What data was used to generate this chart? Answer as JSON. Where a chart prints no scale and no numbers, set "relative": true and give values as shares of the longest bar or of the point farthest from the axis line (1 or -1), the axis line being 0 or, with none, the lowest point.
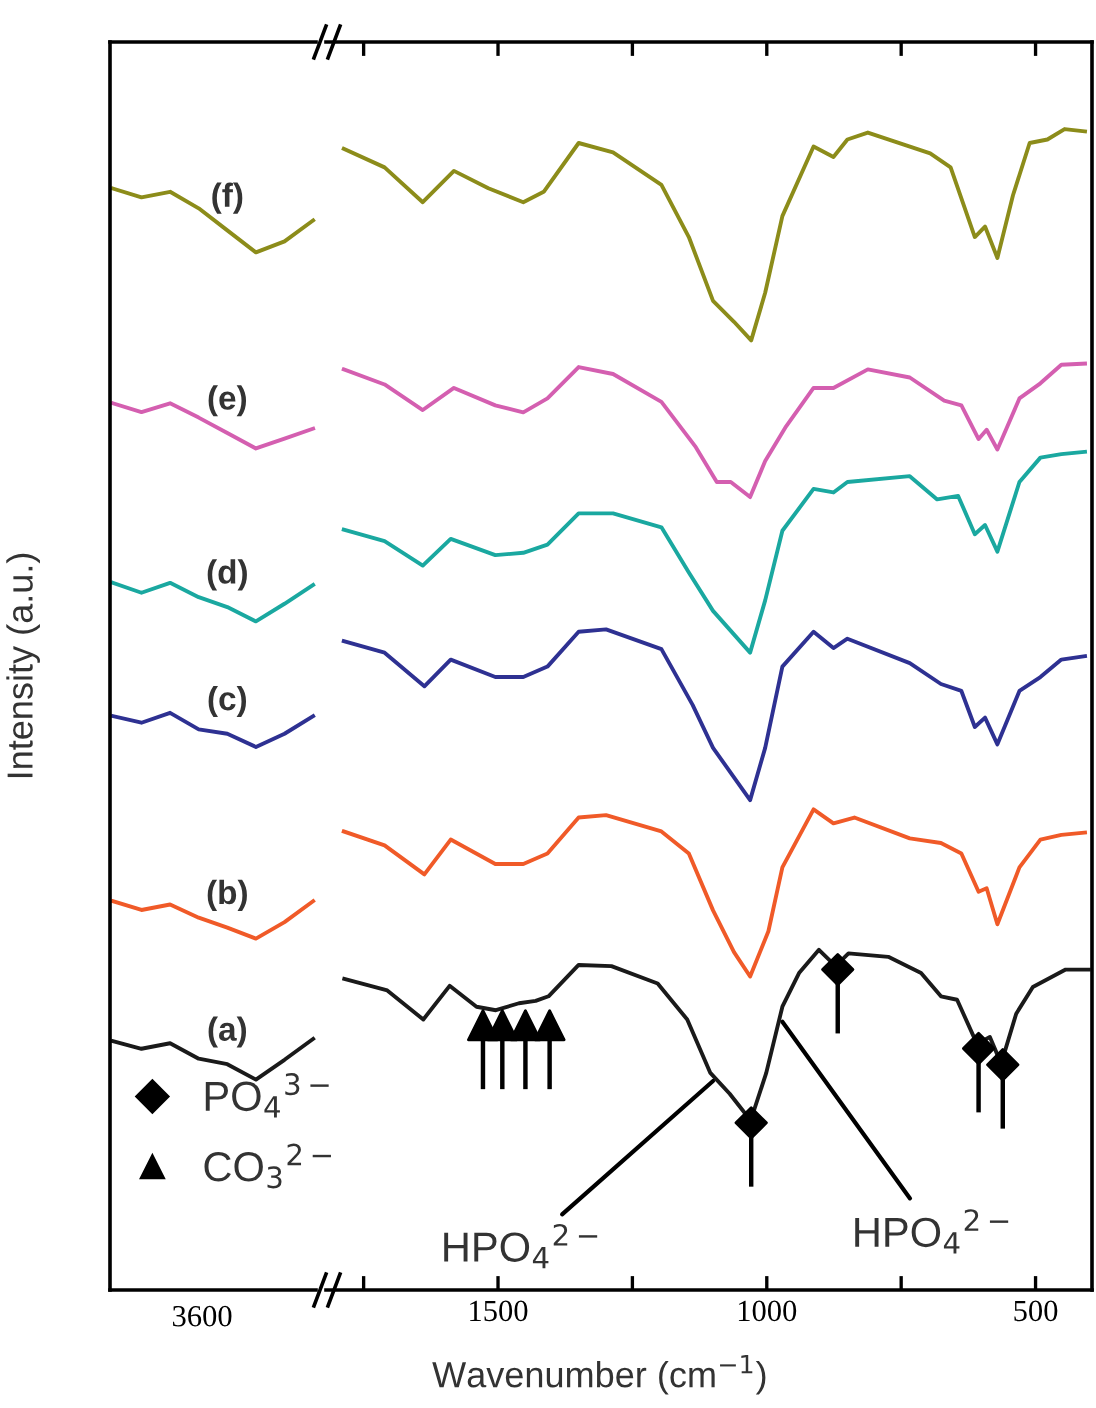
{
  "chart_data": [
    {
      "type": "line",
      "ylabel": "Intensity (a.u.)",
      "relative": true,
      "tick_labels": "x",
      "grid": false,
      "legend": false,
      "categories": [
        null,
        null,
        null,
        null,
        null,
        null,
        null,
        null
      ],
      "annotations": [
        "3600"
      ],
      "series": [
        {
          "name": "(a)",
          "color": "#1a1a1a",
          "values": [
            0.226,
            0.219,
            0.224,
            0.21,
            0.205,
            0.191,
            0.209,
            0.228
          ]
        },
        {
          "name": "(b)",
          "color": "#f05a28",
          "values": [
            0.353,
            0.345,
            0.35,
            0.338,
            0.329,
            0.319,
            0.334,
            0.353
          ]
        },
        {
          "name": "(c)",
          "color": "#2e3192",
          "values": [
            0.521,
            0.515,
            0.524,
            0.509,
            0.505,
            0.493,
            0.505,
            0.521
          ]
        },
        {
          "name": "(d)",
          "color": "#1aa8a0",
          "values": [
            0.642,
            0.633,
            0.642,
            0.629,
            0.62,
            0.607,
            0.623,
            0.64
          ]
        },
        {
          "name": "(e)",
          "color": "#d45fb0",
          "values": [
            0.805,
            0.797,
            0.805,
            0.792,
            0.778,
            0.764,
            0.773,
            0.782
          ]
        },
        {
          "name": "(f)",
          "color": "#8c8c1a",
          "values": [
            1.0,
            0.992,
            0.997,
            0.982,
            0.962,
            0.942,
            0.952,
            0.971
          ]
        }
      ]
    },
    {
      "type": "line",
      "xlabel": "Wavenumber (cm$^{−1}$)",
      "relative": true,
      "tick_labels": "x",
      "grid": false,
      "legend": "bottom left",
      "xlim": [
        1820,
        395
      ],
      "xticks": [
        {
          "value": 1750,
          "label": null
        },
        1500,
        {
          "value": 1250,
          "label": null
        },
        1000,
        {
          "value": 750,
          "label": null
        },
        500
      ],
      "annotations": [
        {
          "text": "HPO$_{4}$$^{2−}$",
          "x": 1100,
          "y": 0.18
        },
        {
          "text": "HPO$_{4}$$^{2−}$",
          "x": 971,
          "y": 0.231
        }
      ],
      "series": [
        {
          "color": "#1a1a1a",
          "x": [
            1786,
            1706,
            1639,
            1590,
            1540,
            1504,
            1461,
            1430,
            1406,
            1350,
            1289,
            1203,
            1148,
            1105,
            1069,
            1030,
            1001,
            971,
            940,
            903,
            872,
            848,
            774,
            713,
            676,
            646,
            609,
            585,
            564,
            536,
            505,
            444,
            401
          ],
          "values": [
            0.268,
            0.258,
            0.233,
            0.262,
            0.244,
            0.241,
            0.247,
            0.249,
            0.253,
            0.28,
            0.279,
            0.264,
            0.233,
            0.187,
            0.169,
            0.146,
            0.187,
            0.244,
            0.273,
            0.293,
            0.279,
            0.29,
            0.287,
            0.273,
            0.253,
            0.25,
            0.212,
            0.218,
            0.195,
            0.238,
            0.261,
            0.276,
            0.276
          ]
        },
        {
          "color": "#f05a28",
          "x": [
            1787,
            1711,
            1637,
            1588,
            1505,
            1453,
            1408,
            1350,
            1299,
            1196,
            1145,
            1100,
            1061,
            1031,
            997,
            971,
            913,
            876,
            837,
            734,
            676,
            638,
            606,
            591,
            571,
            530,
            491,
            452,
            408
          ],
          "values": [
            0.395,
            0.383,
            0.358,
            0.388,
            0.367,
            0.367,
            0.376,
            0.407,
            0.409,
            0.395,
            0.376,
            0.327,
            0.291,
            0.27,
            0.309,
            0.364,
            0.414,
            0.402,
            0.407,
            0.389,
            0.385,
            0.376,
            0.343,
            0.346,
            0.315,
            0.364,
            0.388,
            0.392,
            0.394
          ]
        },
        {
          "color": "#2e3192",
          "x": [
            1787,
            1711,
            1637,
            1588,
            1505,
            1453,
            1408,
            1350,
            1299,
            1196,
            1138,
            1100,
            1031,
            1003,
            971,
            913,
            876,
            850,
            734,
            676,
            638,
            613,
            594,
            571,
            530,
            491,
            452,
            408
          ],
          "values": [
            0.559,
            0.549,
            0.52,
            0.543,
            0.528,
            0.528,
            0.537,
            0.567,
            0.569,
            0.552,
            0.504,
            0.467,
            0.422,
            0.467,
            0.537,
            0.567,
            0.553,
            0.561,
            0.54,
            0.522,
            0.516,
            0.485,
            0.493,
            0.47,
            0.516,
            0.528,
            0.543,
            0.546
          ]
        },
        {
          "color": "#1aa8a0",
          "x": [
            1787,
            1711,
            1640,
            1588,
            1505,
            1453,
            1408,
            1350,
            1286,
            1196,
            1145,
            1100,
            1031,
            1003,
            971,
            913,
            876,
            850,
            734,
            683,
            644,
            613,
            594,
            571,
            530,
            491,
            452,
            408
          ],
          "values": [
            0.655,
            0.645,
            0.624,
            0.647,
            0.633,
            0.635,
            0.642,
            0.669,
            0.669,
            0.657,
            0.618,
            0.585,
            0.549,
            0.594,
            0.654,
            0.69,
            0.687,
            0.696,
            0.701,
            0.681,
            0.684,
            0.651,
            0.659,
            0.636,
            0.696,
            0.717,
            0.72,
            0.722
          ]
        },
        {
          "color": "#d45fb0",
          "x": [
            1787,
            1711,
            1640,
            1582,
            1505,
            1453,
            1408,
            1350,
            1286,
            1196,
            1132,
            1093,
            1067,
            1031,
            1003,
            964,
            913,
            876,
            812,
            734,
            670,
            638,
            606,
            591,
            571,
            530,
            491,
            452,
            408
          ],
          "values": [
            0.793,
            0.78,
            0.758,
            0.777,
            0.762,
            0.756,
            0.768,
            0.795,
            0.789,
            0.765,
            0.726,
            0.696,
            0.696,
            0.683,
            0.714,
            0.744,
            0.777,
            0.777,
            0.793,
            0.786,
            0.766,
            0.762,
            0.733,
            0.741,
            0.724,
            0.768,
            0.781,
            0.797,
            0.798
          ]
        },
        {
          "color": "#8c8c1a",
          "x": [
            1787,
            1711,
            1640,
            1582,
            1518,
            1453,
            1415,
            1350,
            1286,
            1196,
            1145,
            1100,
            1061,
            1029,
            1003,
            971,
            913,
            876,
            850,
            812,
            696,
            658,
            613,
            594,
            571,
            542,
            511,
            478,
            446,
            408
          ],
          "values": [
            0.983,
            0.967,
            0.937,
            0.964,
            0.949,
            0.937,
            0.946,
            0.988,
            0.98,
            0.952,
            0.907,
            0.852,
            0.834,
            0.818,
            0.859,
            0.925,
            0.985,
            0.976,
            0.991,
            0.997,
            0.979,
            0.967,
            0.907,
            0.916,
            0.889,
            0.943,
            0.988,
            0.991,
            1.0,
            0.998
          ]
        },
        {
          "type": "scatter",
          "marker": "diamond",
          "name": "PO$_{4}$$^{3−}$",
          "color": "#000000",
          "x": [
            1029,
            868,
            606,
            561
          ],
          "values": [
            0.144,
            0.276,
            0.208,
            0.194
          ]
        },
        {
          "type": "scatter",
          "marker": "triangle",
          "name": "CO$_{3}$$^{2−}$",
          "color": "#000000",
          "x": [
            1528,
            1492,
            1449,
            1404
          ],
          "values": [
            0.228,
            0.228,
            0.228,
            0.228
          ]
        }
      ]
    }
  ]
}
